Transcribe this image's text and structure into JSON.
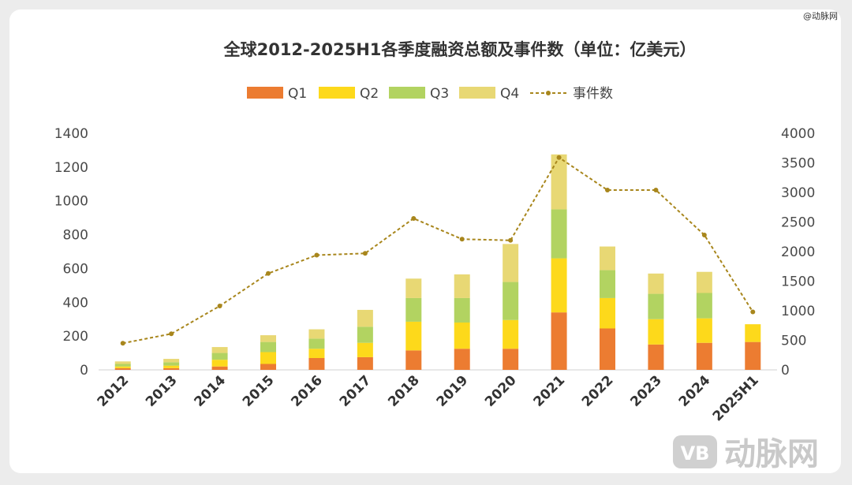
{
  "watermark_tag": "@动脉网",
  "watermark_brand": "动脉网",
  "watermark_logo": "VB",
  "chart_data": {
    "type": "bar",
    "stacked": true,
    "title": "全球2012-2025H1各季度融资总额及事件数（单位：亿美元）",
    "categories": [
      "2012",
      "2013",
      "2014",
      "2015",
      "2016",
      "2017",
      "2018",
      "2019",
      "2020",
      "2021",
      "2022",
      "2023",
      "2024",
      "2025H1"
    ],
    "series": [
      {
        "name": "Q1",
        "color": "#ec7c31",
        "values": [
          10,
          10,
          20,
          35,
          70,
          75,
          115,
          125,
          125,
          340,
          245,
          150,
          160,
          165
        ]
      },
      {
        "name": "Q2",
        "color": "#fdd91b",
        "values": [
          10,
          15,
          40,
          70,
          55,
          85,
          170,
          155,
          170,
          320,
          180,
          150,
          145,
          105
        ]
      },
      {
        "name": "Q3",
        "color": "#b2d361",
        "values": [
          15,
          20,
          40,
          60,
          60,
          95,
          140,
          145,
          225,
          290,
          165,
          150,
          150,
          0
        ]
      },
      {
        "name": "Q4",
        "color": "#e8d874",
        "values": [
          15,
          20,
          35,
          40,
          55,
          100,
          115,
          140,
          225,
          325,
          140,
          120,
          125,
          0
        ]
      }
    ],
    "line": {
      "name": "事件数",
      "color": "#a8861c",
      "values": [
        450,
        610,
        1080,
        1630,
        1940,
        1970,
        2560,
        2210,
        2190,
        3590,
        3040,
        3040,
        2280,
        980
      ]
    },
    "y_left": {
      "min": 0,
      "max": 1400,
      "step": 200,
      "ticks": [
        "0",
        "200",
        "400",
        "600",
        "800",
        "1000",
        "1200",
        "1400"
      ]
    },
    "y_right": {
      "min": 0,
      "max": 4000,
      "step": 500,
      "ticks": [
        "0",
        "500",
        "1000",
        "1500",
        "2000",
        "2500",
        "3000",
        "3500",
        "4000"
      ]
    },
    "legend_position": "top-center"
  }
}
